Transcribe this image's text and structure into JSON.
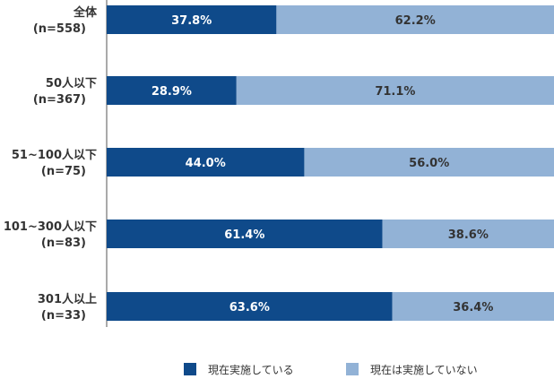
{
  "chart_data": {
    "type": "bar",
    "orientation": "horizontal",
    "stacked": true,
    "percent_stacked": true,
    "categories": [
      [
        "全体",
        "(n=558)"
      ],
      [
        "50人以下",
        "(n=367)"
      ],
      [
        "51~100人以下",
        "(n=75)"
      ],
      [
        "101~300人以下",
        "(n=83)"
      ],
      [
        "301人以上",
        "(n=33)"
      ]
    ],
    "series": [
      {
        "name": "現在実施している",
        "color": "#0f4a8a",
        "label_color": "#ffffff",
        "values": [
          37.8,
          28.9,
          44.0,
          61.4,
          63.6
        ],
        "labels": [
          "37.8%",
          "28.9%",
          "44.0%",
          "61.4%",
          "63.6%"
        ]
      },
      {
        "name": "現在は実施していない",
        "color": "#92b2d6",
        "label_color": "#333333",
        "values": [
          62.2,
          71.1,
          56.0,
          38.6,
          36.4
        ],
        "labels": [
          "62.2%",
          "71.1%",
          "56.0%",
          "38.6%",
          "36.4%"
        ]
      }
    ],
    "xlim": [
      0,
      100
    ],
    "title": "",
    "xlabel": "",
    "ylabel": "",
    "grid": false,
    "legend_position": "bottom"
  }
}
